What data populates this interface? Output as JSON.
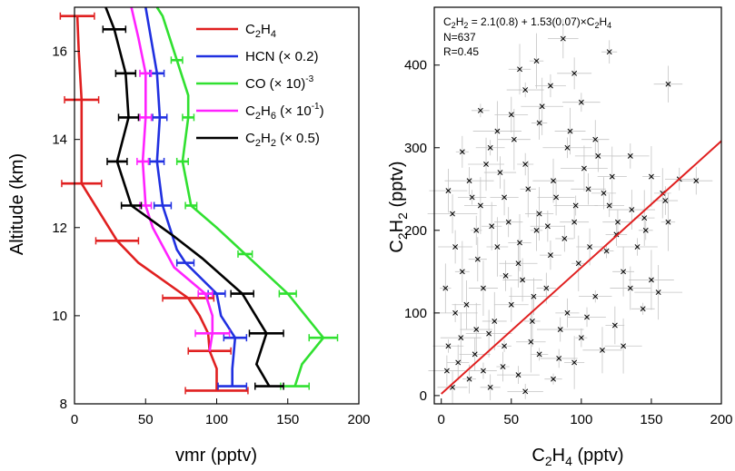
{
  "chart_data": [
    {
      "type": "line",
      "xlabel": "vmr (pptv)",
      "ylabel": "Altitude (km)",
      "xlim": [
        0,
        200
      ],
      "ylim": [
        8,
        17
      ],
      "xticks": [
        "0",
        "50",
        "100",
        "150",
        "200"
      ],
      "yticks": [
        "8",
        "10",
        "12",
        "14",
        "16"
      ],
      "legend_position": "top-right",
      "series": [
        {
          "name": "C2H4",
          "color": "#e02020",
          "legend": {
            "base1": "C",
            "sub1": "2",
            "base2": "H",
            "sub2": "4",
            "rest": ""
          },
          "points": [
            [
              100,
              8.3
            ],
            [
              100,
              8.8
            ],
            [
              95,
              9.2
            ],
            [
              94,
              9.6
            ],
            [
              88,
              10.0
            ],
            [
              80,
              10.4
            ],
            [
              45,
              11.2
            ],
            [
              30,
              11.7
            ],
            [
              5,
              13.0
            ],
            [
              5,
              14.0
            ],
            [
              5,
              14.9
            ],
            [
              3,
              16.0
            ],
            [
              2,
              16.8
            ]
          ],
          "errbars": [
            [
              100,
              8.3,
              22
            ],
            [
              95,
              9.2,
              15
            ],
            [
              80,
              10.4,
              18
            ],
            [
              30,
              11.7,
              15
            ],
            [
              5,
              13.0,
              14
            ],
            [
              5,
              14.9,
              12
            ],
            [
              2,
              16.8,
              12
            ]
          ]
        },
        {
          "name": "HCN (× 0.2)",
          "color": "#2030e0",
          "legend": {
            "base1": "HCN (× 0.2)",
            "sub1": "",
            "base2": "",
            "sub2": "",
            "rest": ""
          },
          "points": [
            [
              111,
              8.4
            ],
            [
              111,
              8.8
            ],
            [
              113,
              9.5
            ],
            [
              103,
              10.0
            ],
            [
              100,
              10.5
            ],
            [
              78,
              11.2
            ],
            [
              72,
              11.5
            ],
            [
              62,
              12.5
            ],
            [
              58,
              13.5
            ],
            [
              60,
              14.5
            ],
            [
              58,
              15.5
            ],
            [
              50,
              17.0
            ]
          ],
          "errbars": [
            [
              111,
              8.4,
              10
            ],
            [
              113,
              9.5,
              8
            ],
            [
              100,
              10.5,
              6
            ],
            [
              78,
              11.2,
              6
            ],
            [
              62,
              12.5,
              6
            ],
            [
              58,
              13.5,
              5
            ],
            [
              60,
              14.5,
              5
            ],
            [
              58,
              15.5,
              5
            ]
          ]
        },
        {
          "name": "CO (× 10-3)",
          "color": "#30e030",
          "legend": {
            "base1": "CO  (× 10",
            "sub1": "",
            "base2": "",
            "sub2": "",
            "rest": ")",
            "sup": "-3"
          },
          "points": [
            [
              155,
              8.4
            ],
            [
              160,
              8.9
            ],
            [
              175,
              9.5
            ],
            [
              150,
              10.5
            ],
            [
              120,
              11.4
            ],
            [
              100,
              12.0
            ],
            [
              82,
              12.5
            ],
            [
              76,
              13.5
            ],
            [
              80,
              14.5
            ],
            [
              80,
              15.0
            ],
            [
              72,
              15.8
            ],
            [
              62,
              16.8
            ],
            [
              58,
              17.0
            ]
          ],
          "errbars": [
            [
              155,
              8.4,
              10
            ],
            [
              175,
              9.5,
              10
            ],
            [
              150,
              10.5,
              6
            ],
            [
              120,
              11.4,
              5
            ],
            [
              82,
              12.5,
              4
            ],
            [
              76,
              13.5,
              4
            ],
            [
              80,
              14.5,
              4
            ],
            [
              72,
              15.8,
              4
            ]
          ]
        },
        {
          "name": "C2H6 (× 10-1)",
          "color": "#ff22ff",
          "legend": {
            "base1": "C",
            "sub1": "2",
            "base2": "H",
            "sub2": "6",
            "rest": " (× 10",
            "sup": "-1",
            "rest2": ")"
          },
          "points": [
            [
              95,
              9.2
            ],
            [
              97,
              9.6
            ],
            [
              97,
              10.0
            ],
            [
              92,
              10.5
            ],
            [
              70,
              11.1
            ],
            [
              55,
              12.0
            ],
            [
              50,
              12.5
            ],
            [
              48,
              13.5
            ],
            [
              50,
              14.5
            ],
            [
              50,
              15.5
            ],
            [
              45,
              16.3
            ],
            [
              40,
              17.0
            ]
          ],
          "errbars": [
            [
              97,
              9.6,
              12
            ],
            [
              92,
              10.5,
              5
            ],
            [
              50,
              12.5,
              4
            ],
            [
              48,
              13.5,
              4
            ],
            [
              50,
              14.5,
              4
            ],
            [
              50,
              15.5,
              4
            ]
          ]
        },
        {
          "name": "C2H2 (× 0.5)",
          "color": "#000000",
          "legend": {
            "base1": "C",
            "sub1": "2",
            "base2": "H",
            "sub2": "2",
            "rest": " (× 0.5)"
          },
          "points": [
            [
              137,
              8.4
            ],
            [
              128,
              8.9
            ],
            [
              135,
              9.6
            ],
            [
              118,
              10.5
            ],
            [
              90,
              11.3
            ],
            [
              70,
              11.8
            ],
            [
              40,
              12.5
            ],
            [
              30,
              13.5
            ],
            [
              38,
              14.5
            ],
            [
              36,
              15.5
            ],
            [
              28,
              16.5
            ],
            [
              22,
              17.0
            ]
          ],
          "errbars": [
            [
              137,
              8.4,
              10
            ],
            [
              135,
              9.6,
              12
            ],
            [
              118,
              10.5,
              8
            ],
            [
              40,
              12.5,
              7
            ],
            [
              30,
              13.5,
              7
            ],
            [
              38,
              14.5,
              7
            ],
            [
              36,
              15.5,
              7
            ],
            [
              28,
              16.5,
              8
            ]
          ]
        }
      ]
    },
    {
      "type": "scatter",
      "xlabel_parts": {
        "a": "C",
        "a_sub": "2",
        "b": "H",
        "b_sub": "4",
        "c": " (pptv)"
      },
      "ylabel_parts": {
        "a": "C",
        "a_sub": "2",
        "b": "H",
        "b_sub": "2",
        "c": " (pptv)"
      },
      "xlim": [
        -5,
        200
      ],
      "ylim": [
        -10,
        470
      ],
      "xticks": [
        "0",
        "50",
        "100",
        "150",
        "200"
      ],
      "yticks": [
        "0",
        "100",
        "200",
        "300",
        "400"
      ],
      "annotation": {
        "eq_a": "C",
        "eq_a_sub": "2",
        "eq_b": "H",
        "eq_b_sub": "2",
        "eq_mid": " = 2.1(0.8) + 1.53(0.07)×C",
        "eq_c_sub": "2",
        "eq_d": "H",
        "eq_d_sub": "4",
        "n": "N=637",
        "r": "R=0.45"
      },
      "fit": {
        "intercept": 2.1,
        "slope": 1.53,
        "color": "#e02020"
      },
      "n_points": 637,
      "sample_points": [
        [
          87,
          432
        ],
        [
          120,
          416
        ],
        [
          162,
          377
        ],
        [
          68,
          405
        ],
        [
          95,
          390
        ],
        [
          56,
          395
        ],
        [
          60,
          370
        ],
        [
          78,
          375
        ],
        [
          100,
          355
        ],
        [
          50,
          340
        ],
        [
          28,
          345
        ],
        [
          40,
          320
        ],
        [
          70,
          330
        ],
        [
          90,
          300
        ],
        [
          110,
          310
        ],
        [
          135,
          290
        ],
        [
          150,
          265
        ],
        [
          170,
          262
        ],
        [
          182,
          260
        ],
        [
          158,
          245
        ],
        [
          160,
          236
        ],
        [
          162,
          210
        ],
        [
          145,
          215
        ],
        [
          120,
          230
        ],
        [
          105,
          250
        ],
        [
          80,
          260
        ],
        [
          60,
          280
        ],
        [
          35,
          300
        ],
        [
          15,
          295
        ],
        [
          5,
          248
        ],
        [
          20,
          260
        ],
        [
          45,
          240
        ],
        [
          70,
          220
        ],
        [
          95,
          210
        ],
        [
          125,
          195
        ],
        [
          140,
          180
        ],
        [
          130,
          150
        ],
        [
          150,
          140
        ],
        [
          155,
          125
        ],
        [
          135,
          130
        ],
        [
          110,
          120
        ],
        [
          90,
          100
        ],
        [
          75,
          130
        ],
        [
          55,
          160
        ],
        [
          40,
          180
        ],
        [
          25,
          200
        ],
        [
          10,
          180
        ],
        [
          15,
          150
        ],
        [
          30,
          130
        ],
        [
          50,
          110
        ],
        [
          65,
          90
        ],
        [
          85,
          80
        ],
        [
          100,
          70
        ],
        [
          115,
          55
        ],
        [
          130,
          60
        ],
        [
          95,
          40
        ],
        [
          70,
          50
        ],
        [
          45,
          60
        ],
        [
          25,
          80
        ],
        [
          10,
          100
        ],
        [
          5,
          60
        ],
        [
          12,
          40
        ],
        [
          20,
          20
        ],
        [
          35,
          10
        ],
        [
          55,
          25
        ],
        [
          80,
          20
        ],
        [
          60,
          5
        ],
        [
          30,
          30
        ],
        [
          8,
          10
        ],
        [
          3,
          130
        ],
        [
          18,
          110
        ],
        [
          38,
          90
        ],
        [
          58,
          140
        ],
        [
          78,
          170
        ],
        [
          98,
          160
        ],
        [
          118,
          175
        ],
        [
          88,
          190
        ],
        [
          68,
          200
        ],
        [
          48,
          210
        ],
        [
          28,
          230
        ],
        [
          42,
          270
        ],
        [
          62,
          250
        ],
        [
          82,
          240
        ],
        [
          102,
          275
        ],
        [
          122,
          265
        ],
        [
          112,
          290
        ],
        [
          92,
          320
        ],
        [
          72,
          350
        ],
        [
          52,
          310
        ],
        [
          32,
          280
        ],
        [
          22,
          240
        ],
        [
          8,
          220
        ],
        [
          4,
          30
        ],
        [
          14,
          70
        ],
        [
          24,
          50
        ],
        [
          34,
          75
        ],
        [
          44,
          35
        ],
        [
          64,
          65
        ],
        [
          84,
          45
        ],
        [
          104,
          95
        ],
        [
          124,
          85
        ],
        [
          144,
          105
        ],
        [
          66,
          120
        ],
        [
          46,
          145
        ],
        [
          26,
          165
        ],
        [
          36,
          205
        ],
        [
          56,
          185
        ],
        [
          76,
          205
        ],
        [
          96,
          230
        ],
        [
          116,
          245
        ],
        [
          136,
          225
        ],
        [
          146,
          200
        ],
        [
          126,
          210
        ],
        [
          106,
          180
        ]
      ]
    }
  ]
}
